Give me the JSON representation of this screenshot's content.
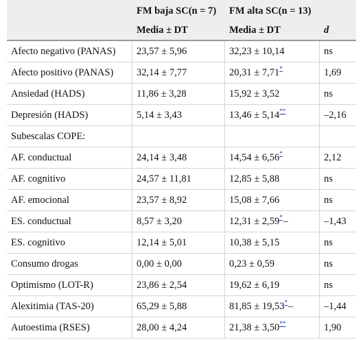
{
  "header": {
    "group1": "FM baja SC(n = 7)",
    "group2": "FM alta SC(n = 13)",
    "col2_sub": "Media ± DT",
    "col3_sub": "Media ± DT",
    "col4_sub": "d"
  },
  "rows": [
    {
      "label": "Afecto negativo (PANAS)",
      "g1": "23,57 ± 5,96",
      "g2": "32,23 ± 10,14",
      "mark": "",
      "dash": "",
      "d": "ns"
    },
    {
      "label": "Afecto positivo (PANAS)",
      "g1": "32,14 ± 7,77",
      "g2": "20,31 ± 7,71",
      "mark": "*",
      "dash": "",
      "d": "1,69"
    },
    {
      "label": "Ansiedad (HADS)",
      "g1": "11,86 ± 3,28",
      "g2": "15,92 ± 3,52",
      "mark": "",
      "dash": "",
      "d": "ns"
    },
    {
      "label": "Depresión (HADS)",
      "g1": "5,14 ± 3,43",
      "g2": "13,46 ± 5,14",
      "mark": "**",
      "dash": "",
      "d": "–2,16"
    },
    {
      "label": "Subescalas COPE:",
      "g1": "",
      "g2": "",
      "mark": "",
      "dash": "",
      "d": ""
    },
    {
      "label": "AF. conductual",
      "g1": "24,14 ± 3,48",
      "g2": "14,54 ± 6,56",
      "mark": "*",
      "dash": "",
      "d": "2,12"
    },
    {
      "label": "AF. cognitivo",
      "g1": "24,57 ± 11,81",
      "g2": "12,85 ± 5,88",
      "mark": "",
      "dash": "",
      "d": "ns"
    },
    {
      "label": "AF. emocional",
      "g1": "23,57 ± 8,92",
      "g2": "15,08 ± 7,66",
      "mark": "",
      "dash": "",
      "d": "ns"
    },
    {
      "label": "ES. conductual",
      "g1": "8,57 ± 3,20",
      "g2": "12,31 ± 2,59",
      "mark": "*",
      "dash": "–",
      "d": "–1,43"
    },
    {
      "label": "ES. cognitivo",
      "g1": "12,14 ± 5,01",
      "g2": "10,38 ± 5,15",
      "mark": "",
      "dash": "",
      "d": "ns"
    },
    {
      "label": "Consumo drogas",
      "g1": "0,00 ± 0,00",
      "g2": "0,23 ± 0,59",
      "mark": "",
      "dash": "",
      "d": "ns"
    },
    {
      "label": "Optimismo (LOT-R)",
      "g1": "23,86 ± 2,54",
      "g2": "19,62 ± 6,19",
      "mark": "",
      "dash": "",
      "d": "ns"
    },
    {
      "label": "Alexitimia (TAS-20)",
      "g1": "65,29 ± 5,88",
      "g2": "81,85 ± 19,53",
      "mark": "*",
      "dash": "–",
      "d": "–1,44"
    },
    {
      "label": "Autoestima (RSES)",
      "g1": "28,00 ± 4,24",
      "g2": "21,38 ± 3,50",
      "mark": "**",
      "dash": "",
      "d": "1,90"
    }
  ]
}
